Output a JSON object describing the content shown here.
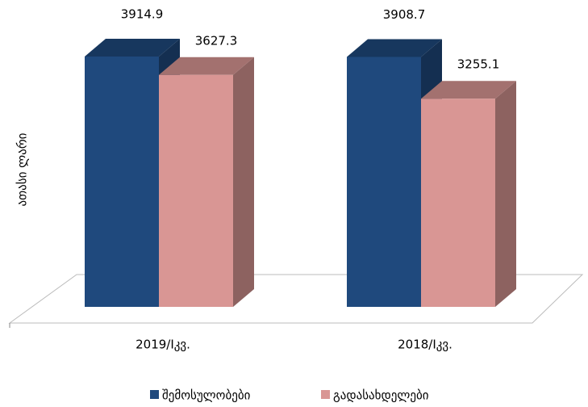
{
  "chart_data": {
    "type": "bar",
    "y_label": "ათასი ლარი",
    "categories": [
      "2019/Iკვ.",
      "2018/Iკვ."
    ],
    "series": [
      {
        "name": "შემოსულობები",
        "color": "#1f497d",
        "values": [
          3914.9,
          3908.7
        ]
      },
      {
        "name": "გადასახდელები",
        "color": "#d99694",
        "values": [
          3627.3,
          3255.1
        ]
      }
    ],
    "legend": "bottom"
  }
}
